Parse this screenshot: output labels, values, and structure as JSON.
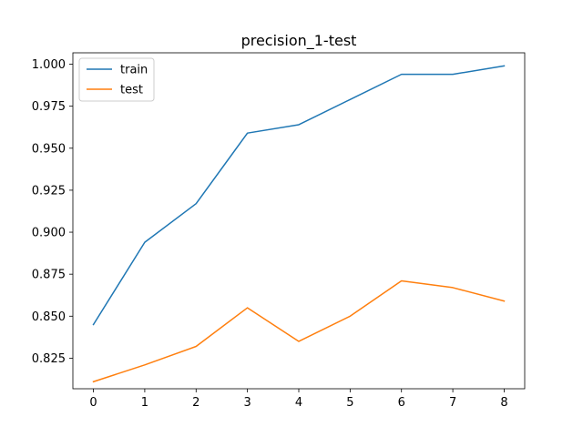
{
  "chart_data": {
    "type": "line",
    "title": "precision_1-test",
    "xlabel": "",
    "ylabel": "",
    "x": [
      0,
      1,
      2,
      3,
      4,
      5,
      6,
      7,
      8
    ],
    "xticks": [
      "0",
      "1",
      "2",
      "3",
      "4",
      "5",
      "6",
      "7",
      "8"
    ],
    "yticks": [
      "0.825",
      "0.850",
      "0.875",
      "0.900",
      "0.925",
      "0.950",
      "0.975",
      "1.000"
    ],
    "xlim": [
      -0.4,
      8.4
    ],
    "ylim": [
      0.8068,
      1.0068
    ],
    "grid": false,
    "legend_position": "top-left",
    "series": [
      {
        "name": "train",
        "color": "#1f77b4",
        "values": [
          0.845,
          0.894,
          0.917,
          0.959,
          0.964,
          0.979,
          0.994,
          0.994,
          0.999
        ]
      },
      {
        "name": "test",
        "color": "#ff7f0e",
        "values": [
          0.811,
          0.821,
          0.832,
          0.855,
          0.835,
          0.85,
          0.871,
          0.867,
          0.859
        ]
      }
    ]
  }
}
